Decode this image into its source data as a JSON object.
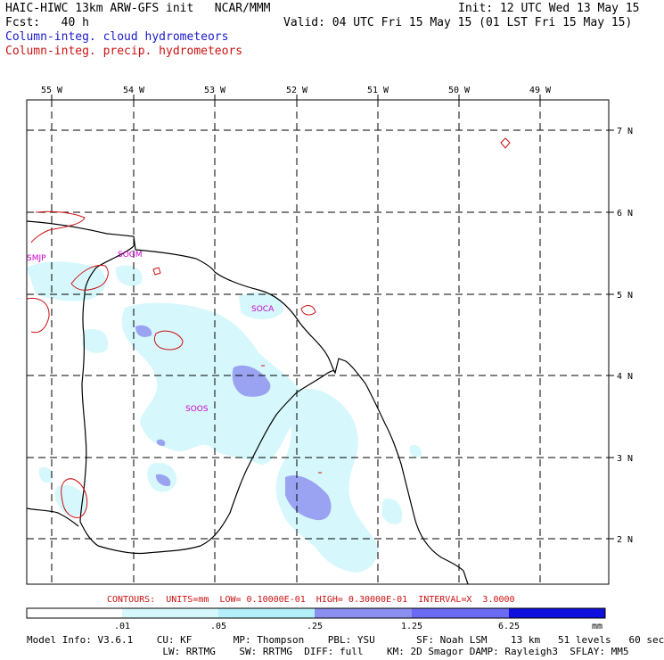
{
  "header": {
    "title": "HAIC-HIWC 13km ARW-GFS init   NCAR/MMM",
    "init": "Init: 12 UTC Wed 13 May 15",
    "fcst": "Fcst:   40 h",
    "valid": "Valid: 04 UTC Fri 15 May 15 (01 LST Fri 15 May 15)",
    "field1": "Column-integ. cloud hydrometeors",
    "field2": "Column-integ. precip. hydrometeors"
  },
  "map": {
    "lon_labels": [
      "55 W",
      "54 W",
      "53 W",
      "52 W",
      "51 W",
      "50 W",
      "49 W"
    ],
    "lat_labels": [
      "7 N",
      "6 N",
      "5 N",
      "4 N",
      "3 N",
      "2 N"
    ],
    "stations": [
      "SMJP",
      "SOGM",
      "SOCA",
      "SOOS"
    ],
    "colors": {
      "cloud_light": "#d6f8fc",
      "cloud_mid": "#9aa3f2",
      "precip_contour": "#cc1111",
      "coastline": "#000000",
      "station": "#cc00cc"
    }
  },
  "colorbar": {
    "contours_note": "CONTOURS:  UNITS=mm  LOW= 0.10000E-01  HIGH= 0.30000E-01  INTERVAL=X  3.0000",
    "ticks": [
      ".01",
      ".05",
      ".25",
      "1.25",
      "6.25"
    ],
    "unit": "mm",
    "colors": [
      "#ffffff",
      "#d6f8fc",
      "#b3f0fa",
      "#8a8ff0",
      "#6a6af2",
      "#3a3ae8",
      "#1010dd"
    ]
  },
  "model_info": {
    "line1": "Model Info: V3.6.1    CU: KF       MP: Thompson    PBL: YSU       SF: Noah LSM    13 km   51 levels   60 sec",
    "line2": "                       LW: RRTMG    SW: RRTMG  DIFF: full    KM: 2D Smagor DAMP: Rayleigh3  SFLAY: MM5"
  }
}
